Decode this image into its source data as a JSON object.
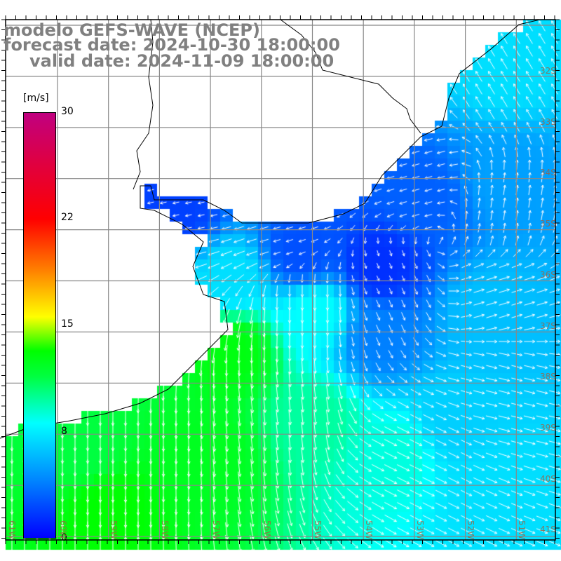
{
  "title": {
    "line1": "modelo GEFS-WAVE (NCEP)",
    "line2": "forecast date: 2024-10-30 18:00:00",
    "line3": "valid date: 2024-11-09 18:00:00"
  },
  "colorbar": {
    "unit": "[m/s]",
    "ticks": [
      "30",
      "22",
      "15",
      "8",
      "0"
    ],
    "colors": [
      "#0000ff",
      "#0080ff",
      "#00ffff",
      "#00ff00",
      "#ffff00",
      "#ff8000",
      "#ff0000",
      "#c00080"
    ]
  },
  "lon_labels": [
    "61W",
    "60W",
    "59W",
    "58W",
    "57W",
    "56W",
    "55W",
    "54W",
    "53W",
    "52W",
    "51W"
  ],
  "lat_labels": [
    "32S",
    "33S",
    "34S",
    "35S",
    "36S",
    "37S",
    "38S",
    "39S",
    "40S",
    "41S"
  ]
}
